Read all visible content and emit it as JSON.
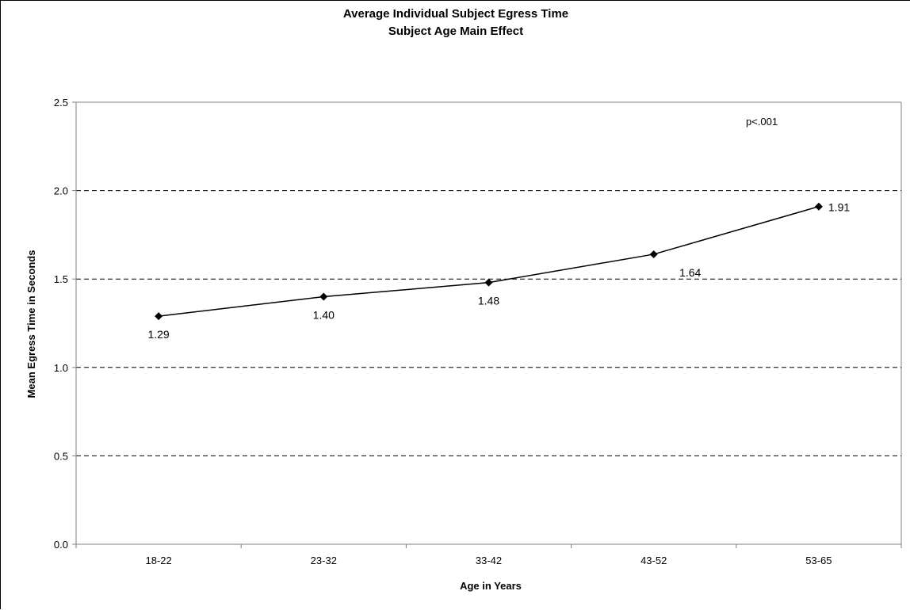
{
  "chart_data": {
    "type": "line",
    "title": "Average Individual Subject Egress Time",
    "subtitle": "Subject Age Main Effect",
    "xlabel": "Age in Years",
    "ylabel": "Mean Egress Time in Seconds",
    "categories": [
      "18-22",
      "23-32",
      "33-42",
      "43-52",
      "53-65"
    ],
    "series": [
      {
        "values": [
          1.29,
          1.4,
          1.48,
          1.64,
          1.91
        ],
        "data_labels": [
          "1.29",
          "1.40",
          "1.48",
          "1.64",
          "1.91"
        ]
      }
    ],
    "ylim": [
      0,
      2.5
    ],
    "yticks": [
      0.0,
      0.5,
      1.0,
      1.5,
      2.0,
      2.5
    ],
    "ytick_labels": [
      "0.0",
      "0.5",
      "1.0",
      "1.5",
      "2.0",
      "2.5"
    ],
    "grid": "horizontal-dashed",
    "legend": "none",
    "annotation": "p<.001",
    "colors": {
      "line": "#000000",
      "marker": "#000000",
      "grid": "#000000",
      "axis": "#808080"
    }
  }
}
